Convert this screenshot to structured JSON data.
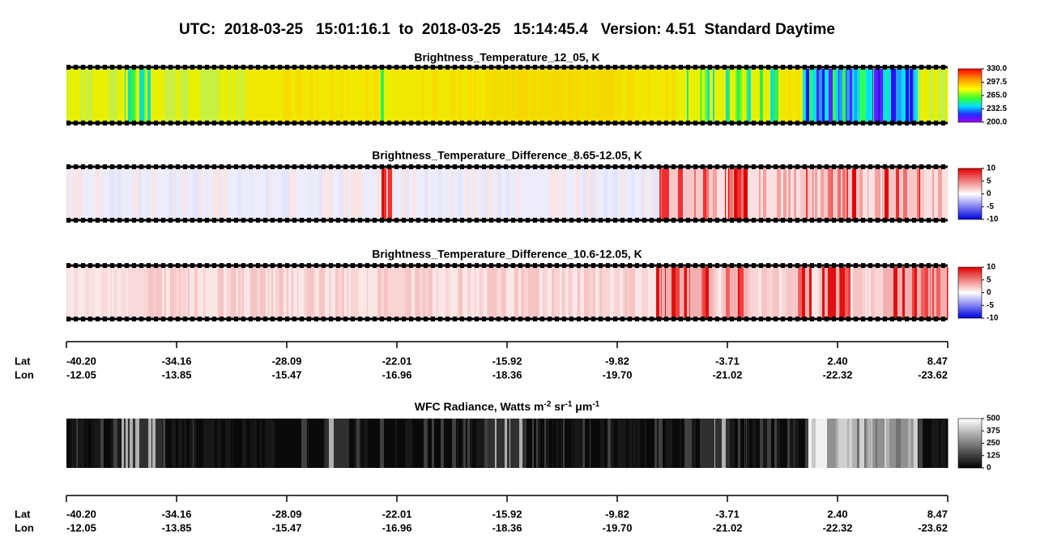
{
  "header": {
    "title": "UTC:  2018-03-25   15:01:16.1  to  2018-03-25   15:14:45.4   Version: 4.51  Standard Daytime"
  },
  "panels": [
    {
      "title": "Brightness_Temperature_12_05, K",
      "colorbar": {
        "ticks": [
          {
            "value": 330,
            "label": "330.0"
          },
          297.5,
          {
            "value": 265,
            "label": "265.0"
          },
          232.5,
          {
            "value": 200,
            "label": "200.0"
          }
        ]
      }
    },
    {
      "title": "Brightness_Temperature_Difference_8.65-12.05, K",
      "colorbar": {
        "ticks": [
          10,
          5,
          0,
          -5,
          -10
        ]
      }
    },
    {
      "title": "Brightness_Temperature_Difference_10.6-12.05, K",
      "colorbar": {
        "ticks": [
          10,
          5,
          0,
          -5,
          -10
        ]
      }
    },
    {
      "title_parts": [
        "WFC Radiance, Watts m",
        "-2",
        " sr",
        "-1",
        " μ",
        "m",
        "-1"
      ],
      "colorbar": {
        "ticks": [
          500,
          375,
          250,
          125,
          0
        ]
      }
    }
  ],
  "axes": [
    {
      "lat_label": "Lat",
      "lon_label": "Lon",
      "lat": [
        "-40.20",
        "-34.16",
        "-28.09",
        "-22.01",
        "-15.92",
        "-9.82",
        "-3.71",
        "2.40",
        "8.47"
      ],
      "lon": [
        "-12.05",
        "-13.85",
        "-15.47",
        "-16.96",
        "-18.36",
        "-19.70",
        "-21.02",
        "-22.32",
        "-23.62"
      ]
    },
    {
      "lat_label": "Lat",
      "lon_label": "Lon",
      "lat": [
        "-40.20",
        "-34.16",
        "-28.09",
        "-22.01",
        "-15.92",
        "-9.82",
        "-3.71",
        "2.40",
        "8.47"
      ],
      "lon": [
        "-12.05",
        "-13.85",
        "-15.47",
        "-16.96",
        "-18.36",
        "-19.70",
        "-21.02",
        "-22.32",
        "-23.62"
      ]
    }
  ]
}
